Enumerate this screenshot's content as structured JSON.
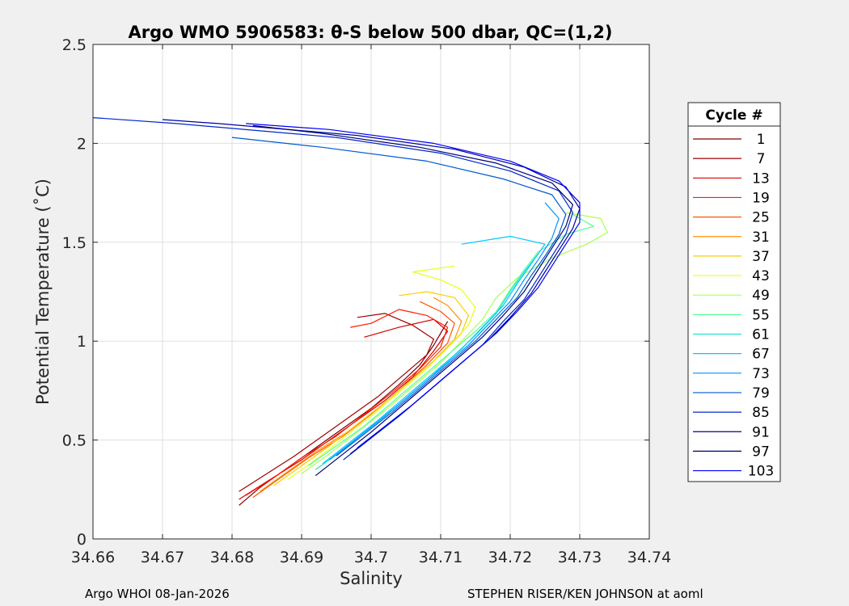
{
  "chart_data": {
    "type": "line",
    "title": "Argo WMO 5906583: θ-S below 500 dbar,  QC=(1,2)",
    "xlabel": "Salinity",
    "ylabel": "Potential Temperature (˚C)",
    "xlim": [
      34.66,
      34.74
    ],
    "ylim": [
      0,
      2.5
    ],
    "x_ticks": [
      "34.66",
      "34.67",
      "34.68",
      "34.69",
      "34.7",
      "34.71",
      "34.72",
      "34.73",
      "34.74"
    ],
    "y_ticks": [
      "0",
      "0.5",
      "1",
      "1.5",
      "2",
      "2.5"
    ],
    "grid": true,
    "legend": {
      "title": "Cycle #",
      "placement": "right",
      "entries": [
        "1",
        "7",
        "13",
        "19",
        "25",
        "31",
        "37",
        "43",
        "49",
        "55",
        "61",
        "67",
        "73",
        "79",
        "85",
        "91",
        "97",
        "103"
      ],
      "colors": [
        "#800000",
        "#a00000",
        "#d40000",
        "#ff1a00",
        "#ff5500",
        "#ff9200",
        "#ffcc00",
        "#e6ff1a",
        "#aaff55",
        "#55ff99",
        "#22e6cc",
        "#00c8ff",
        "#0090ff",
        "#005ad0",
        "#0028c8",
        "#0000a0",
        "#000078",
        "#0000ff"
      ]
    },
    "series": [
      {
        "values": [
          [
            34.681,
            0.17
          ],
          [
            34.684,
            0.26
          ],
          [
            34.688,
            0.36
          ],
          [
            34.692,
            0.46
          ],
          [
            34.696,
            0.56
          ],
          [
            34.7,
            0.66
          ],
          [
            34.704,
            0.78
          ],
          [
            34.707,
            0.88
          ],
          [
            34.709,
            0.98
          ],
          [
            34.71,
            1.04
          ],
          [
            34.711,
            1.1
          ]
        ]
      },
      {
        "values": [
          [
            34.681,
            0.24
          ],
          [
            34.685,
            0.33
          ],
          [
            34.689,
            0.42
          ],
          [
            34.693,
            0.52
          ],
          [
            34.697,
            0.62
          ],
          [
            34.701,
            0.72
          ],
          [
            34.705,
            0.84
          ],
          [
            34.708,
            0.93
          ],
          [
            34.709,
            1.01
          ],
          [
            34.706,
            1.08
          ],
          [
            34.702,
            1.14
          ],
          [
            34.698,
            1.12
          ]
        ]
      },
      {
        "values": [
          [
            34.681,
            0.2
          ],
          [
            34.685,
            0.29
          ],
          [
            34.69,
            0.4
          ],
          [
            34.694,
            0.5
          ],
          [
            34.698,
            0.6
          ],
          [
            34.702,
            0.7
          ],
          [
            34.706,
            0.82
          ],
          [
            34.709,
            0.95
          ],
          [
            34.711,
            1.05
          ],
          [
            34.709,
            1.11
          ],
          [
            34.704,
            1.07
          ],
          [
            34.699,
            1.02
          ]
        ]
      },
      {
        "values": [
          [
            34.682,
            0.22
          ],
          [
            34.686,
            0.31
          ],
          [
            34.69,
            0.41
          ],
          [
            34.695,
            0.52
          ],
          [
            34.699,
            0.63
          ],
          [
            34.703,
            0.74
          ],
          [
            34.707,
            0.86
          ],
          [
            34.71,
            0.97
          ],
          [
            34.711,
            1.07
          ],
          [
            34.708,
            1.13
          ],
          [
            34.704,
            1.16
          ],
          [
            34.7,
            1.09
          ],
          [
            34.697,
            1.07
          ]
        ]
      },
      {
        "values": [
          [
            34.683,
            0.21
          ],
          [
            34.687,
            0.31
          ],
          [
            34.691,
            0.41
          ],
          [
            34.696,
            0.52
          ],
          [
            34.7,
            0.63
          ],
          [
            34.704,
            0.75
          ],
          [
            34.708,
            0.88
          ],
          [
            34.711,
            0.99
          ],
          [
            34.712,
            1.09
          ],
          [
            34.71,
            1.15
          ],
          [
            34.707,
            1.2
          ]
        ]
      },
      {
        "values": [
          [
            34.684,
            0.24
          ],
          [
            34.688,
            0.34
          ],
          [
            34.692,
            0.44
          ],
          [
            34.697,
            0.55
          ],
          [
            34.701,
            0.66
          ],
          [
            34.705,
            0.78
          ],
          [
            34.709,
            0.9
          ],
          [
            34.712,
            1.01
          ],
          [
            34.713,
            1.1
          ],
          [
            34.711,
            1.18
          ],
          [
            34.709,
            1.22
          ]
        ]
      },
      {
        "values": [
          [
            34.686,
            0.27
          ],
          [
            34.69,
            0.37
          ],
          [
            34.694,
            0.47
          ],
          [
            34.698,
            0.58
          ],
          [
            34.702,
            0.69
          ],
          [
            34.706,
            0.81
          ],
          [
            34.71,
            0.93
          ],
          [
            34.713,
            1.04
          ],
          [
            34.714,
            1.13
          ],
          [
            34.712,
            1.22
          ],
          [
            34.708,
            1.25
          ],
          [
            34.704,
            1.23
          ]
        ]
      },
      {
        "values": [
          [
            34.688,
            0.3
          ],
          [
            34.692,
            0.4
          ],
          [
            34.696,
            0.51
          ],
          [
            34.7,
            0.62
          ],
          [
            34.704,
            0.74
          ],
          [
            34.708,
            0.86
          ],
          [
            34.711,
            0.97
          ],
          [
            34.714,
            1.08
          ],
          [
            34.715,
            1.17
          ],
          [
            34.713,
            1.26
          ],
          [
            34.71,
            1.31
          ],
          [
            34.706,
            1.35
          ],
          [
            34.712,
            1.38
          ]
        ]
      },
      {
        "values": [
          [
            34.69,
            0.33
          ],
          [
            34.694,
            0.43
          ],
          [
            34.698,
            0.54
          ],
          [
            34.702,
            0.65
          ],
          [
            34.706,
            0.77
          ],
          [
            34.71,
            0.89
          ],
          [
            34.713,
            1.0
          ],
          [
            34.716,
            1.11
          ],
          [
            34.718,
            1.22
          ],
          [
            34.721,
            1.32
          ],
          [
            34.726,
            1.42
          ],
          [
            34.731,
            1.49
          ],
          [
            34.734,
            1.55
          ],
          [
            34.733,
            1.62
          ],
          [
            34.728,
            1.65
          ]
        ]
      },
      {
        "values": [
          [
            34.691,
            0.37
          ],
          [
            34.695,
            0.47
          ],
          [
            34.699,
            0.57
          ],
          [
            34.703,
            0.69
          ],
          [
            34.707,
            0.81
          ],
          [
            34.711,
            0.93
          ],
          [
            34.715,
            1.05
          ],
          [
            34.718,
            1.15
          ],
          [
            34.72,
            1.26
          ],
          [
            34.722,
            1.36
          ],
          [
            34.724,
            1.45
          ],
          [
            34.728,
            1.54
          ],
          [
            34.732,
            1.58
          ],
          [
            34.729,
            1.64
          ]
        ]
      },
      {
        "values": [
          [
            34.692,
            0.35
          ],
          [
            34.696,
            0.45
          ],
          [
            34.7,
            0.57
          ],
          [
            34.704,
            0.68
          ],
          [
            34.708,
            0.8
          ],
          [
            34.712,
            0.93
          ],
          [
            34.715,
            1.03
          ],
          [
            34.718,
            1.14
          ],
          [
            34.72,
            1.25
          ],
          [
            34.722,
            1.35
          ],
          [
            34.724,
            1.44
          ]
        ]
      },
      {
        "values": [
          [
            34.693,
            0.38
          ],
          [
            34.697,
            0.49
          ],
          [
            34.701,
            0.6
          ],
          [
            34.705,
            0.72
          ],
          [
            34.709,
            0.84
          ],
          [
            34.713,
            0.96
          ],
          [
            34.716,
            1.07
          ],
          [
            34.719,
            1.18
          ],
          [
            34.721,
            1.29
          ],
          [
            34.723,
            1.39
          ],
          [
            34.725,
            1.49
          ],
          [
            34.72,
            1.53
          ],
          [
            34.713,
            1.49
          ]
        ]
      },
      {
        "values": [
          [
            34.694,
            0.4
          ],
          [
            34.698,
            0.51
          ],
          [
            34.702,
            0.62
          ],
          [
            34.706,
            0.74
          ],
          [
            34.71,
            0.86
          ],
          [
            34.714,
            0.98
          ],
          [
            34.717,
            1.09
          ],
          [
            34.72,
            1.2
          ],
          [
            34.722,
            1.31
          ],
          [
            34.724,
            1.41
          ],
          [
            34.726,
            1.52
          ],
          [
            34.727,
            1.62
          ],
          [
            34.725,
            1.7
          ]
        ]
      },
      {
        "values": [
          [
            34.695,
            0.42
          ],
          [
            34.699,
            0.53
          ],
          [
            34.703,
            0.64
          ],
          [
            34.707,
            0.76
          ],
          [
            34.711,
            0.88
          ],
          [
            34.715,
            1.0
          ],
          [
            34.718,
            1.11
          ],
          [
            34.721,
            1.22
          ],
          [
            34.723,
            1.33
          ],
          [
            34.725,
            1.43
          ],
          [
            34.727,
            1.54
          ],
          [
            34.728,
            1.64
          ],
          [
            34.726,
            1.74
          ],
          [
            34.719,
            1.82
          ],
          [
            34.708,
            1.91
          ],
          [
            34.693,
            1.98
          ],
          [
            34.68,
            2.03
          ]
        ]
      },
      {
        "values": [
          [
            34.696,
            0.4
          ],
          [
            34.7,
            0.51
          ],
          [
            34.704,
            0.62
          ],
          [
            34.708,
            0.74
          ],
          [
            34.712,
            0.86
          ],
          [
            34.716,
            0.98
          ],
          [
            34.719,
            1.1
          ],
          [
            34.722,
            1.21
          ],
          [
            34.724,
            1.32
          ],
          [
            34.726,
            1.43
          ],
          [
            34.728,
            1.54
          ],
          [
            34.729,
            1.65
          ],
          [
            34.727,
            1.76
          ],
          [
            34.72,
            1.86
          ],
          [
            34.71,
            1.95
          ],
          [
            34.695,
            2.03
          ],
          [
            34.672,
            2.1
          ],
          [
            34.66,
            2.13
          ]
        ]
      },
      {
        "values": [
          [
            34.697,
            0.43
          ],
          [
            34.701,
            0.54
          ],
          [
            34.705,
            0.65
          ],
          [
            34.709,
            0.77
          ],
          [
            34.713,
            0.89
          ],
          [
            34.717,
            1.01
          ],
          [
            34.72,
            1.12
          ],
          [
            34.723,
            1.24
          ],
          [
            34.725,
            1.35
          ],
          [
            34.727,
            1.46
          ],
          [
            34.729,
            1.57
          ],
          [
            34.73,
            1.67
          ],
          [
            34.728,
            1.78
          ],
          [
            34.722,
            1.88
          ],
          [
            34.712,
            1.97
          ],
          [
            34.698,
            2.04
          ],
          [
            34.678,
            2.1
          ],
          [
            34.67,
            2.12
          ]
        ]
      },
      {
        "values": [
          [
            34.692,
            0.32
          ],
          [
            34.696,
            0.43
          ],
          [
            34.7,
            0.54
          ],
          [
            34.704,
            0.66
          ],
          [
            34.708,
            0.78
          ],
          [
            34.712,
            0.9
          ],
          [
            34.716,
            1.02
          ],
          [
            34.719,
            1.13
          ],
          [
            34.722,
            1.25
          ],
          [
            34.724,
            1.36
          ],
          [
            34.726,
            1.47
          ],
          [
            34.728,
            1.58
          ],
          [
            34.729,
            1.69
          ],
          [
            34.726,
            1.8
          ],
          [
            34.718,
            1.9
          ],
          [
            34.707,
            1.98
          ],
          [
            34.693,
            2.05
          ],
          [
            34.683,
            2.09
          ]
        ]
      },
      {
        "values": [
          [
            34.698,
            0.46
          ],
          [
            34.702,
            0.57
          ],
          [
            34.706,
            0.68
          ],
          [
            34.71,
            0.8
          ],
          [
            34.714,
            0.92
          ],
          [
            34.718,
            1.04
          ],
          [
            34.721,
            1.15
          ],
          [
            34.724,
            1.27
          ],
          [
            34.726,
            1.38
          ],
          [
            34.728,
            1.49
          ],
          [
            34.73,
            1.6
          ],
          [
            34.73,
            1.7
          ],
          [
            34.727,
            1.81
          ],
          [
            34.72,
            1.91
          ],
          [
            34.709,
            2.0
          ],
          [
            34.694,
            2.07
          ],
          [
            34.682,
            2.1
          ]
        ]
      }
    ]
  },
  "footer": {
    "left": "Argo WHOI 08-Jan-2026",
    "right": "STEPHEN RISER/KEN JOHNSON at aoml"
  }
}
